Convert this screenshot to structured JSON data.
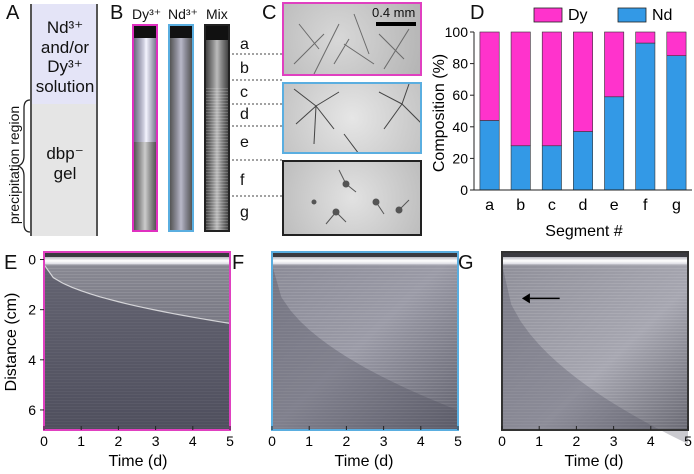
{
  "panel_labels": [
    "A",
    "B",
    "C",
    "D",
    "E",
    "F",
    "G"
  ],
  "panel_a": {
    "solution_label": "Nd³⁺ and/or Dy³⁺ solution",
    "solution_lines": [
      "Nd³⁺",
      "and/or",
      "Dy³⁺",
      "solution"
    ],
    "gel_lines": [
      "dbp⁻",
      "gel"
    ],
    "region_label": "precipitation region",
    "colors": {
      "solution": "#e3e3f7",
      "gel": "#e4e4e4"
    }
  },
  "panel_b": {
    "tube_labels": [
      "Dy³⁺",
      "Nd³⁺",
      "Mix"
    ],
    "segments": [
      "a",
      "b",
      "c",
      "d",
      "e",
      "f",
      "g"
    ],
    "frame_colors": {
      "dy": "#e030c0",
      "nd": "#5aaee0",
      "mix": "#222222"
    }
  },
  "panel_c": {
    "scale_bar": "0.4 mm",
    "frame_colors": [
      "#e040c0",
      "#5aaee0",
      "#222222"
    ]
  },
  "colors": {
    "dy": "#ff33cc",
    "nd": "#3399e6"
  },
  "chart_data": [
    {
      "panel": "D",
      "type": "bar",
      "stacked": true,
      "categories": [
        "a",
        "b",
        "c",
        "d",
        "e",
        "f",
        "g"
      ],
      "series": [
        {
          "name": "Nd",
          "values": [
            44,
            28,
            28,
            37,
            59,
            93,
            85
          ]
        },
        {
          "name": "Dy",
          "values": [
            56,
            72,
            72,
            63,
            41,
            7,
            15
          ]
        }
      ],
      "xlabel": "Segment #",
      "ylabel": "Composition (%)",
      "ylim": [
        0,
        100
      ],
      "yticks": [
        0,
        20,
        40,
        60,
        80,
        100
      ],
      "legend": "top"
    },
    {
      "panel": "E",
      "type": "heatmap",
      "xlabel": "Time (d)",
      "ylabel": "Distance (cm)",
      "xlim": [
        0,
        5
      ],
      "ylim": [
        6.8,
        -0.3
      ],
      "xticks": [
        0,
        1,
        2,
        3,
        4,
        5
      ],
      "yticks": [
        0,
        2,
        4,
        6
      ],
      "frame_color": "#e040c0"
    },
    {
      "panel": "F",
      "type": "heatmap",
      "xlabel": "Time (d)",
      "xlim": [
        0,
        5
      ],
      "ylim": [
        6.8,
        -0.3
      ],
      "xticks": [
        0,
        1,
        2,
        3,
        4,
        5
      ],
      "frame_color": "#5aaee0"
    },
    {
      "panel": "G",
      "type": "heatmap",
      "xlabel": "Time (d)",
      "xlim": [
        0,
        5
      ],
      "ylim": [
        6.8,
        -0.3
      ],
      "xticks": [
        0,
        1,
        2,
        3,
        4,
        5
      ],
      "frame_color": "#333333"
    }
  ]
}
